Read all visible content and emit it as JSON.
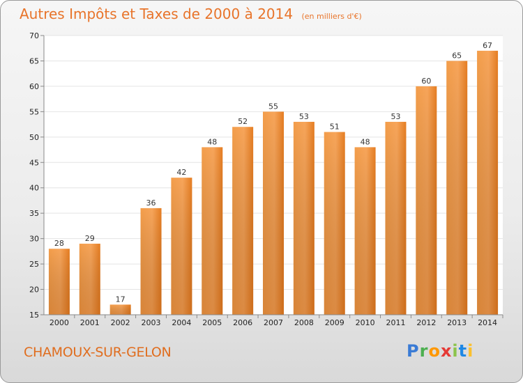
{
  "chart_data": {
    "type": "bar",
    "title": "Autres Impôts et Taxes de 2000 à 2014",
    "subtitle": "(en milliers d'€)",
    "categories": [
      "2000",
      "2001",
      "2002",
      "2003",
      "2004",
      "2005",
      "2006",
      "2007",
      "2008",
      "2009",
      "2010",
      "2011",
      "2012",
      "2013",
      "2014"
    ],
    "values": [
      28,
      29,
      17,
      36,
      42,
      48,
      52,
      55,
      53,
      51,
      48,
      53,
      60,
      65,
      67
    ],
    "ylim": [
      15,
      70
    ],
    "yticks": [
      15,
      20,
      25,
      30,
      35,
      40,
      45,
      50,
      55,
      60,
      65,
      70
    ],
    "grid": true,
    "bar_color": "#f08a2c"
  },
  "footer": {
    "place": "CHAMOUX-SUR-GELON",
    "logo": [
      "P",
      "r",
      "o",
      "x",
      "i",
      "t",
      "i"
    ]
  }
}
